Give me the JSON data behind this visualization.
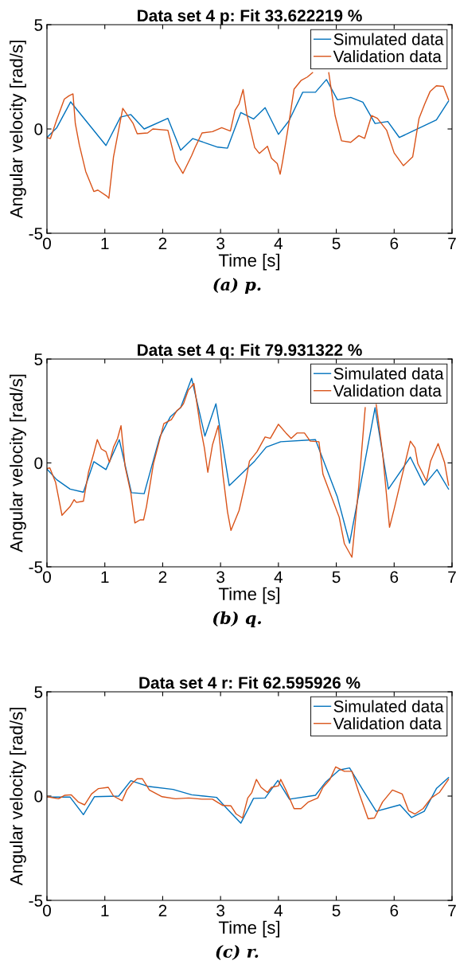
{
  "chart_data": [
    {
      "type": "line",
      "title": "Data set 4 p: Fit 33.622219 %",
      "xlabel": "Time [s]",
      "ylabel": "Angular velocity [rad/s]",
      "xlim": [
        0,
        7
      ],
      "ylim": [
        -5,
        5
      ],
      "xticks": [
        0,
        1,
        2,
        3,
        4,
        5,
        6,
        7
      ],
      "yticks": [
        -5,
        0,
        5
      ],
      "legend": "top right",
      "grid": false,
      "annotations": [
        "(a) p."
      ],
      "series": [
        {
          "name": "Simulated data",
          "color": "#0072bd",
          "x": [
            0,
            0.17,
            0.41,
            1.02,
            1.27,
            1.45,
            1.68,
            2.09,
            2.31,
            2.52,
            2.77,
            2.95,
            3.12,
            3.35,
            3.57,
            3.77,
            4.0,
            4.18,
            4.42,
            4.64,
            4.83,
            5.02,
            5.25,
            5.46,
            5.67,
            5.89,
            6.09,
            6.73,
            6.94
          ],
          "values": [
            -0.41,
            0.06,
            1.3,
            -0.79,
            0.57,
            0.69,
            0,
            0.51,
            -1.02,
            -0.46,
            -0.7,
            -0.87,
            -0.92,
            0.79,
            0.48,
            1.02,
            -0.26,
            0.38,
            1.76,
            1.76,
            2.37,
            1.4,
            1.51,
            1.28,
            0.26,
            0.36,
            -0.41,
            0.43,
            1.34
          ]
        },
        {
          "name": "Validation data",
          "color": "#d95319",
          "x": [
            0,
            0.06,
            0.17,
            0.3,
            0.38,
            0.45,
            0.49,
            0.56,
            0.67,
            0.81,
            0.88,
            1.04,
            1.07,
            1.15,
            1.31,
            1.49,
            1.56,
            1.74,
            1.83,
            2.09,
            2.22,
            2.35,
            2.5,
            2.56,
            2.68,
            2.86,
            3.02,
            3.17,
            3.25,
            3.32,
            3.39,
            3.45,
            3.59,
            3.67,
            3.81,
            3.88,
            3.98,
            4.03,
            4.07,
            4.18,
            4.27,
            4.39,
            4.5,
            4.59,
            4.73,
            4.87,
            4.98,
            5.09,
            5.25,
            5.39,
            5.49,
            5.61,
            5.71,
            5.87,
            6.0,
            6.16,
            6.32,
            6.43,
            6.53,
            6.62,
            6.73,
            6.85,
            6.94
          ],
          "values": [
            -0.41,
            -0.46,
            0.45,
            1.43,
            1.59,
            1.68,
            0.26,
            -0.77,
            -2.04,
            -3.0,
            -2.93,
            -3.23,
            -3.32,
            -1.34,
            0.99,
            0.26,
            -0.23,
            -0.19,
            0,
            -0.06,
            -1.53,
            -2.13,
            -1.28,
            -0.89,
            -0.19,
            -0.13,
            0.06,
            -0.1,
            0.89,
            1.21,
            1.89,
            0.77,
            -0.89,
            -1.17,
            -0.83,
            -1.4,
            -1.66,
            -2.17,
            -1.59,
            0.26,
            1.91,
            2.32,
            2.49,
            2.7,
            null,
            2.7,
            0.64,
            -0.57,
            -0.64,
            -0.32,
            -0.45,
            0.64,
            0.51,
            -0.06,
            -1.15,
            -1.76,
            -1.34,
            0.51,
            1.21,
            1.79,
            2.07,
            2.04,
            1.4
          ]
        }
      ]
    },
    {
      "type": "line",
      "title": "Data set 4 q: Fit 79.931322 %",
      "xlabel": "Time [s]",
      "ylabel": "Angular velocity [rad/s]",
      "xlim": [
        0,
        7
      ],
      "ylim": [
        -5,
        5
      ],
      "xticks": [
        0,
        1,
        2,
        3,
        4,
        5,
        6,
        7
      ],
      "yticks": [
        -5,
        0,
        5
      ],
      "legend": "top right",
      "grid": false,
      "annotations": [
        "(b) q."
      ],
      "series": [
        {
          "name": "Simulated data",
          "color": "#0072bd",
          "x": [
            0,
            0.17,
            0.4,
            0.63,
            0.81,
            1.02,
            1.25,
            1.46,
            1.68,
            1.95,
            2.13,
            2.31,
            2.5,
            2.73,
            2.92,
            3.15,
            3.59,
            3.79,
            4.04,
            4.64,
            5.02,
            5.23,
            5.67,
            5.9,
            6.28,
            6.52,
            6.74,
            6.94
          ],
          "values": [
            -0.3,
            -0.81,
            -1.26,
            -1.41,
            0.06,
            -0.32,
            1.12,
            -1.43,
            -1.48,
            1.25,
            2.21,
            2.66,
            4.07,
            1.29,
            2.85,
            -1.09,
            0.09,
            0.76,
            1.02,
            1.12,
            -1.65,
            -3.86,
            2.66,
            -1.26,
            0.28,
            -1.07,
            -0.32,
            -1.26
          ]
        },
        {
          "name": "Validation data",
          "color": "#d95319",
          "x": [
            0,
            0.05,
            0.15,
            0.26,
            0.4,
            0.47,
            0.51,
            0.63,
            0.72,
            0.81,
            0.87,
            0.94,
            1.02,
            1.08,
            1.15,
            1.22,
            1.28,
            1.35,
            1.45,
            1.52,
            1.61,
            1.67,
            1.72,
            1.84,
            2.02,
            2.15,
            2.25,
            2.31,
            2.36,
            2.44,
            2.54,
            2.65,
            2.72,
            2.78,
            2.86,
            2.96,
            3.04,
            3.12,
            3.18,
            3.32,
            3.43,
            3.5,
            3.63,
            3.77,
            3.86,
            4.0,
            4.13,
            4.22,
            4.32,
            4.45,
            4.55,
            4.7,
            4.77,
            4.91,
            5.05,
            5.14,
            5.27,
            5.39,
            5.5,
            5.6,
            5.69,
            5.8,
            5.92,
            6.0,
            6.12,
            6.28,
            6.36,
            6.41,
            6.56,
            6.63,
            6.76,
            6.87,
            6.94
          ],
          "values": [
            -0.27,
            -0.24,
            -0.94,
            -2.52,
            -2.1,
            -1.77,
            -1.9,
            -1.84,
            -0.42,
            0.48,
            1.12,
            0.67,
            0.54,
            0.03,
            0.76,
            1.18,
            1.79,
            -0.17,
            -1.45,
            -2.89,
            -2.74,
            -2.74,
            -2.1,
            -0.04,
            1.89,
            2.08,
            2.53,
            2.66,
            2.85,
            3.49,
            3.82,
            1.76,
            0.73,
            -0.45,
            0.86,
            1.79,
            -0.55,
            -2.35,
            -3.25,
            -2.29,
            -0.94,
            0.09,
            0.54,
            1.25,
            1.18,
            1.86,
            1.44,
            1.18,
            1.44,
            1.44,
            1.05,
            1.02,
            -0.55,
            -1.58,
            -2.61,
            -3.89,
            -4.54,
            -1.07,
            2.66,
            null,
            2.81,
            0.48,
            -3.1,
            -2.22,
            -0.81,
            1.05,
            0.73,
            -0.04,
            -0.87,
            0.09,
            0.93,
            0.03,
            -1.07
          ]
        }
      ]
    },
    {
      "type": "line",
      "title": "Data set 4 r: Fit 62.595926 %",
      "xlabel": "Time [s]",
      "ylabel": "Angular velocity [rad/s]",
      "xlim": [
        0,
        7
      ],
      "ylim": [
        -5,
        5
      ],
      "xticks": [
        0,
        1,
        2,
        3,
        4,
        5,
        6,
        7
      ],
      "yticks": [
        -5,
        0,
        5
      ],
      "legend": "top right",
      "grid": false,
      "annotations": [
        "(c) r."
      ],
      "series": [
        {
          "name": "Simulated data",
          "color": "#0072bd",
          "x": [
            0,
            0.4,
            0.63,
            0.82,
            1.24,
            1.45,
            1.74,
            2.18,
            2.5,
            2.93,
            3.13,
            3.35,
            3.57,
            3.77,
            3.99,
            4.19,
            4.64,
            4.82,
            5.05,
            5.23,
            5.46,
            5.69,
            6.1,
            6.3,
            6.52,
            6.73,
            6.94
          ],
          "values": [
            -0.05,
            -0.05,
            -0.89,
            -0.03,
            0,
            0.74,
            0.47,
            0.32,
            0.06,
            -0.06,
            -0.66,
            -1.3,
            -0.11,
            -0.09,
            0.75,
            -0.15,
            0.04,
            0.68,
            1.25,
            1.35,
            0.29,
            -0.73,
            -0.42,
            -1.03,
            -0.73,
            0.36,
            0.89
          ]
        },
        {
          "name": "Validation data",
          "color": "#d95319",
          "x": [
            0,
            0.2,
            0.31,
            0.42,
            0.54,
            0.65,
            0.77,
            0.89,
            1.06,
            1.15,
            1.3,
            1.38,
            1.47,
            1.56,
            1.65,
            1.77,
            1.99,
            2.22,
            2.45,
            2.68,
            2.86,
            3.04,
            3.18,
            3.27,
            3.38,
            3.47,
            3.54,
            3.62,
            3.7,
            3.81,
            3.88,
            4.0,
            4.04,
            4.13,
            4.27,
            4.39,
            4.52,
            4.68,
            4.77,
            4.89,
            4.99,
            5.14,
            5.27,
            5.39,
            5.55,
            5.66,
            5.8,
            5.97,
            6.14,
            6.25,
            6.36,
            6.5,
            6.64,
            6.78,
            6.94
          ],
          "values": [
            -0.03,
            -0.13,
            0.04,
            0.06,
            -0.28,
            -0.42,
            0.1,
            0.36,
            0.42,
            0,
            -0.22,
            0.29,
            0.61,
            0.83,
            0.83,
            0.29,
            -0.03,
            -0.13,
            -0.09,
            -0.15,
            -0.15,
            -0.45,
            -0.47,
            -0.86,
            -1.05,
            -0.09,
            0.17,
            0.8,
            0.42,
            0.17,
            0.42,
            0.49,
            0.8,
            0.29,
            -0.6,
            -0.6,
            -0.28,
            -0.09,
            0.42,
            0.8,
            1.4,
            1.19,
            1.19,
            0.17,
            -1.09,
            -1.05,
            -0.28,
            0.29,
            0.1,
            -0.7,
            -0.86,
            -0.6,
            -0.09,
            0.17,
            0.8
          ]
        }
      ]
    }
  ]
}
